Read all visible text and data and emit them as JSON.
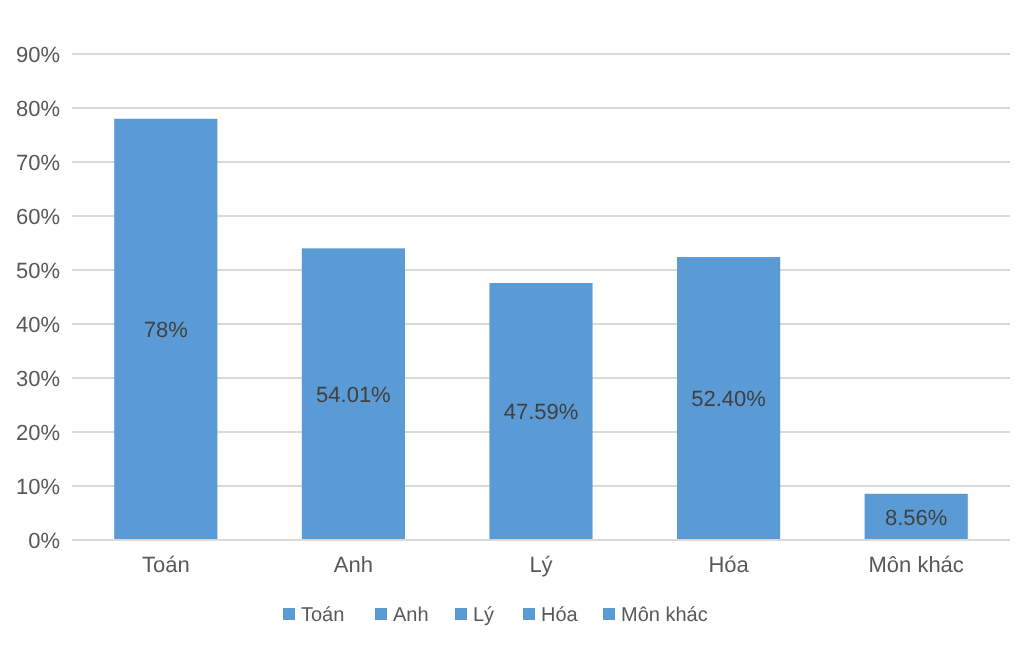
{
  "chart_data": {
    "type": "bar",
    "categories": [
      "Toán",
      "Anh",
      "Lý",
      "Hóa",
      "Môn khác"
    ],
    "series": [
      {
        "name": "Toán",
        "color": "#5b9bd5",
        "values": [
          78,
          null,
          null,
          null,
          null
        ],
        "value_labels": [
          "78%",
          null,
          null,
          null,
          null
        ]
      },
      {
        "name": "Anh",
        "color": "#5b9bd5",
        "values": [
          null,
          54.01,
          null,
          null,
          null
        ],
        "value_labels": [
          null,
          "54.01%",
          null,
          null,
          null
        ]
      },
      {
        "name": "Lý",
        "color": "#5b9bd5",
        "values": [
          null,
          null,
          47.59,
          null,
          null
        ],
        "value_labels": [
          null,
          null,
          "47.59%",
          null,
          null
        ]
      },
      {
        "name": "Hóa",
        "color": "#5b9bd5",
        "values": [
          null,
          null,
          null,
          52.4,
          null
        ],
        "value_labels": [
          null,
          null,
          null,
          "52.40%",
          null
        ]
      },
      {
        "name": "Môn khác",
        "color": "#5b9bd5",
        "values": [
          null,
          null,
          null,
          null,
          8.56
        ],
        "value_labels": [
          null,
          null,
          null,
          null,
          "8.56%"
        ]
      }
    ],
    "stacked": true,
    "ylim": [
      0,
      90
    ],
    "yticks": [
      {
        "value": 0,
        "label": "0%"
      },
      {
        "value": 10,
        "label": "10%"
      },
      {
        "value": 20,
        "label": "20%"
      },
      {
        "value": 30,
        "label": "30%"
      },
      {
        "value": 40,
        "label": "40%"
      },
      {
        "value": 50,
        "label": "50%"
      },
      {
        "value": 60,
        "label": "60%"
      },
      {
        "value": 70,
        "label": "70%"
      },
      {
        "value": 80,
        "label": "80%"
      },
      {
        "value": 90,
        "label": "90%"
      }
    ],
    "grid": "y",
    "legend": "bottom"
  }
}
